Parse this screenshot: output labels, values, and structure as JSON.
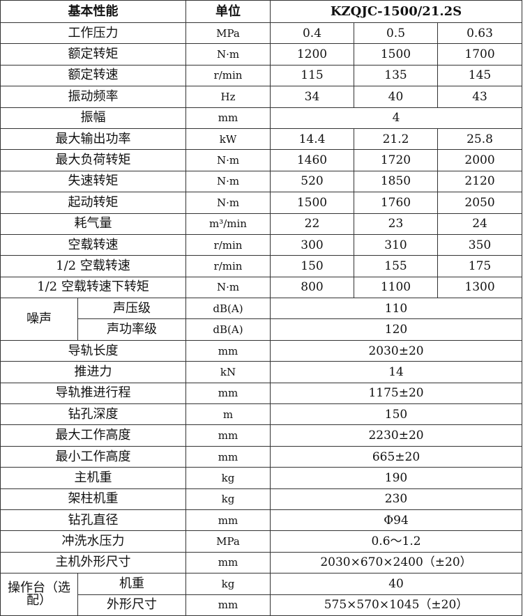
{
  "header": {
    "performance": "基本性能",
    "unit": "单位",
    "model": "KZQJC-1500/21.2S"
  },
  "rows": [
    {
      "label": "工作压力",
      "unit": "MPa",
      "values": [
        "0.4",
        "0.5",
        "0.63"
      ]
    },
    {
      "label": "额定转矩",
      "unit": "N·m",
      "values": [
        "1200",
        "1500",
        "1700"
      ]
    },
    {
      "label": "额定转速",
      "unit": "r/min",
      "values": [
        "115",
        "135",
        "145"
      ]
    },
    {
      "label": "振动频率",
      "unit": "Hz",
      "values": [
        "34",
        "40",
        "43"
      ]
    },
    {
      "label": "振幅",
      "unit": "mm",
      "values": [
        "4"
      ]
    },
    {
      "label": "最大输出功率",
      "unit": "kW",
      "values": [
        "14.4",
        "21.2",
        "25.8"
      ]
    },
    {
      "label": "最大负荷转矩",
      "unit": "N·m",
      "values": [
        "1460",
        "1720",
        "2000"
      ]
    },
    {
      "label": "失速转矩",
      "unit": "N·m",
      "values": [
        "520",
        "1850",
        "2120"
      ]
    },
    {
      "label": "起动转矩",
      "unit": "N·m",
      "values": [
        "1500",
        "1760",
        "2050"
      ]
    },
    {
      "label": "耗气量",
      "unit": "m³/min",
      "values": [
        "22",
        "23",
        "24"
      ]
    },
    {
      "label": "空载转速",
      "unit": "r/min",
      "values": [
        "300",
        "310",
        "350"
      ]
    },
    {
      "label": "1/2 空载转速",
      "unit": "r/min",
      "values": [
        "150",
        "155",
        "175"
      ]
    },
    {
      "label": "1/2 空载转速下转矩",
      "unit": "N·m",
      "values": [
        "800",
        "1100",
        "1300"
      ]
    },
    {
      "group": "噪声",
      "label": "声压级",
      "unit": "dB(A)",
      "values": [
        "110"
      ]
    },
    {
      "group": "噪声",
      "label": "声功率级",
      "unit": "dB(A)",
      "values": [
        "120"
      ]
    },
    {
      "label": "导轨长度",
      "unit": "mm",
      "values": [
        "2030±20"
      ]
    },
    {
      "label": "推进力",
      "unit": "kN",
      "values": [
        "14"
      ]
    },
    {
      "label": "导轨推进行程",
      "unit": "mm",
      "values": [
        "1175±20"
      ]
    },
    {
      "label": "钻孔深度",
      "unit": "m",
      "values": [
        "150"
      ]
    },
    {
      "label": "最大工作高度",
      "unit": "mm",
      "values": [
        "2230±20"
      ]
    },
    {
      "label": "最小工作高度",
      "unit": "mm",
      "values": [
        "665±20"
      ]
    },
    {
      "label": "主机重",
      "unit": "kg",
      "values": [
        "190"
      ]
    },
    {
      "label": "架柱机重",
      "unit": "kg",
      "values": [
        "230"
      ]
    },
    {
      "label": "钻孔直径",
      "unit": "mm",
      "values": [
        "Φ94"
      ]
    },
    {
      "label": "冲洗水压力",
      "unit": "MPa",
      "values": [
        "0.6～1.2"
      ]
    },
    {
      "label": "主机外形尺寸",
      "unit": "mm",
      "values": [
        "2030×670×2400（±20）"
      ]
    },
    {
      "group": "操作台（选配）",
      "label": "机重",
      "unit": "kg",
      "values": [
        "40"
      ]
    },
    {
      "group": "操作台（选配）",
      "label": "外形尺寸",
      "unit": "mm",
      "values": [
        "575×570×1045（±20）"
      ]
    }
  ]
}
